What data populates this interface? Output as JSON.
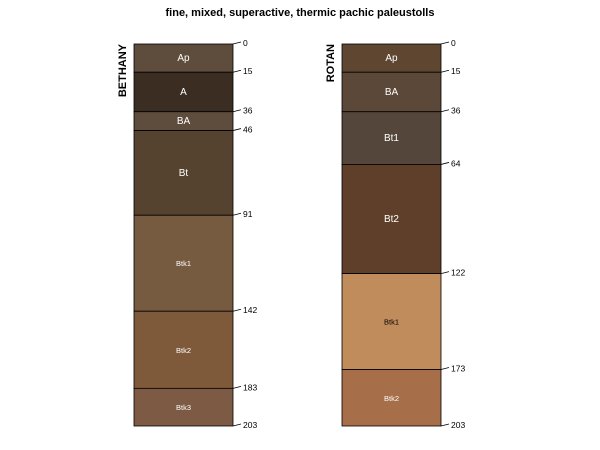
{
  "title": "fine, mixed, superactive, thermic pachic paleustolls",
  "depth_max": 203,
  "profiles": [
    {
      "name": "BETHANY",
      "horizons": [
        {
          "label": "Ap",
          "top": 0,
          "bottom": 15,
          "color": "#5E4D3D",
          "label_color": "#ffffff"
        },
        {
          "label": "A",
          "top": 15,
          "bottom": 36,
          "color": "#3B2D21",
          "label_color": "#ffffff"
        },
        {
          "label": "BA",
          "top": 36,
          "bottom": 46,
          "color": "#5E4D3D",
          "label_color": "#ffffff"
        },
        {
          "label": "Bt",
          "top": 46,
          "bottom": 91,
          "color": "#56432F",
          "label_color": "#ffffff"
        },
        {
          "label": "Btk1",
          "top": 91,
          "bottom": 142,
          "color": "#765B40",
          "label_color": "#ffffff"
        },
        {
          "label": "Btk2",
          "top": 142,
          "bottom": 183,
          "color": "#7E5A3B",
          "label_color": "#ffffff"
        },
        {
          "label": "Btk3",
          "top": 183,
          "bottom": 203,
          "color": "#7D5A43",
          "label_color": "#ffffff"
        }
      ],
      "depth_ticks": [
        0,
        15,
        36,
        46,
        91,
        142,
        183,
        203
      ]
    },
    {
      "name": "ROTAN",
      "horizons": [
        {
          "label": "Ap",
          "top": 0,
          "bottom": 15,
          "color": "#5E4631",
          "label_color": "#ffffff"
        },
        {
          "label": "BA",
          "top": 15,
          "bottom": 36,
          "color": "#5B4839",
          "label_color": "#ffffff"
        },
        {
          "label": "Bt1",
          "top": 36,
          "bottom": 64,
          "color": "#55463B",
          "label_color": "#ffffff"
        },
        {
          "label": "Bt2",
          "top": 64,
          "bottom": 122,
          "color": "#5F3F29",
          "label_color": "#ffffff"
        },
        {
          "label": "Btk1",
          "top": 122,
          "bottom": 173,
          "color": "#C18C5C",
          "label_color": "#000000"
        },
        {
          "label": "Btk2",
          "top": 173,
          "bottom": 203,
          "color": "#A76E4A",
          "label_color": "#ffffff"
        }
      ],
      "depth_ticks": [
        0,
        15,
        36,
        64,
        122,
        173,
        203
      ]
    }
  ]
}
